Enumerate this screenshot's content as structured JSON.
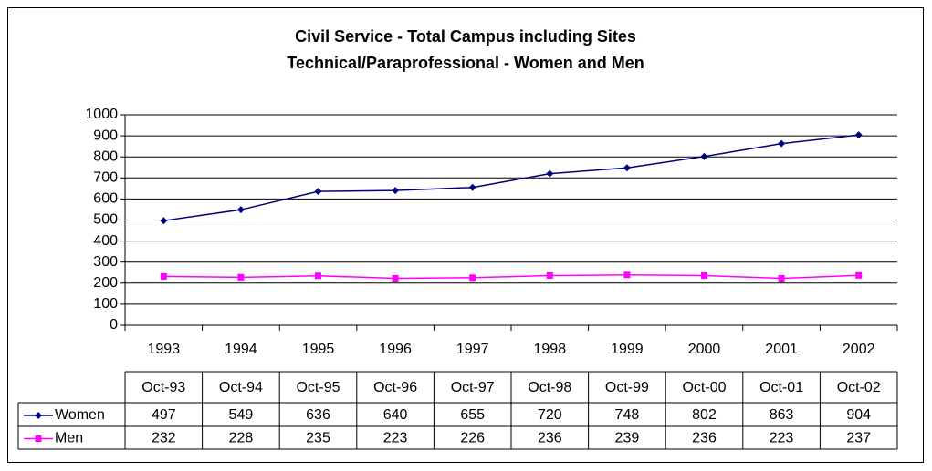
{
  "chart_data": {
    "type": "line",
    "title": [
      "Civil Service - Total Campus including Sites",
      "Technical/Paraprofessional - Women and Men"
    ],
    "categories": [
      "1993",
      "1994",
      "1995",
      "1996",
      "1997",
      "1998",
      "1999",
      "2000",
      "2001",
      "2002"
    ],
    "table_columns": [
      "Oct-93",
      "Oct-94",
      "Oct-95",
      "Oct-96",
      "Oct-97",
      "Oct-98",
      "Oct-99",
      "Oct-00",
      "Oct-01",
      "Oct-02"
    ],
    "series": [
      {
        "name": "Women",
        "color": "#000080",
        "marker": "diamond",
        "values": [
          497,
          549,
          636,
          640,
          655,
          720,
          748,
          802,
          863,
          904
        ]
      },
      {
        "name": "Men",
        "color": "#ff00ff",
        "marker": "square",
        "values": [
          232,
          228,
          235,
          223,
          226,
          236,
          239,
          236,
          223,
          237
        ]
      }
    ],
    "ylim": [
      0,
      1000
    ],
    "yticks": [
      0,
      100,
      200,
      300,
      400,
      500,
      600,
      700,
      800,
      900,
      1000
    ],
    "grid": true
  }
}
